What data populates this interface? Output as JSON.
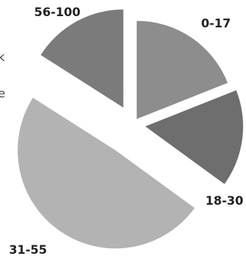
{
  "chart_data": {
    "type": "pie",
    "exploded": true,
    "grid": false,
    "categories": [
      "0-17",
      "18-30",
      "31-55",
      "56-100"
    ],
    "values": [
      19,
      16,
      49,
      16
    ],
    "colors": [
      "#8d8d8d",
      "#6e6e6e",
      "#b3b3b3",
      "#7b7b7b"
    ],
    "cut_off_legend_fragments": [
      "k",
      "e"
    ]
  }
}
